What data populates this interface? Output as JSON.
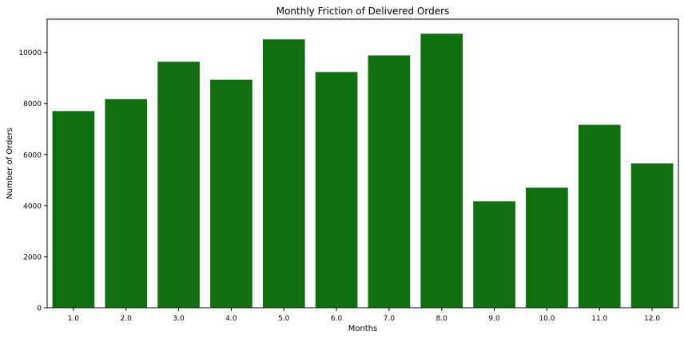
{
  "chart_data": {
    "type": "bar",
    "title": "Monthly Friction of Delivered Orders",
    "xlabel": "Months",
    "ylabel": "Number of Orders",
    "categories": [
      "1.0",
      "2.0",
      "3.0",
      "4.0",
      "5.0",
      "6.0",
      "7.0",
      "8.0",
      "9.0",
      "10.0",
      "11.0",
      "12.0"
    ],
    "values": [
      7700,
      8170,
      9630,
      8930,
      10510,
      9230,
      9880,
      10730,
      4170,
      4700,
      7160,
      5650
    ],
    "ylim": [
      0,
      11300
    ],
    "yticks": [
      0,
      2000,
      4000,
      6000,
      8000,
      10000
    ],
    "bar_color": "#107010",
    "grid": false,
    "legend": "none"
  }
}
